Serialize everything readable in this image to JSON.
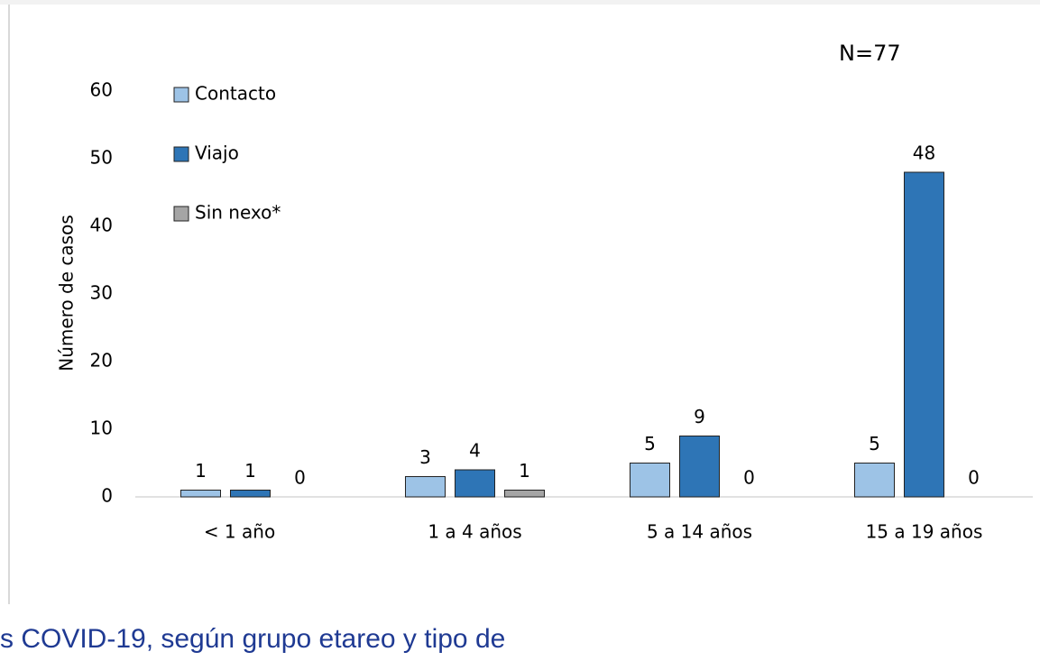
{
  "chart_data": {
    "type": "bar",
    "annotation": "N=77",
    "y_label": "Número de casos",
    "categories": [
      "< 1 año",
      "1 a 4 años",
      "5 a 14 años",
      "15 a 19 años"
    ],
    "series": [
      {
        "name": "Contacto",
        "color": "#9dc3e6",
        "values": [
          1,
          3,
          5,
          5
        ]
      },
      {
        "name": "Viajo",
        "color": "#2e75b6",
        "values": [
          1,
          4,
          9,
          48
        ]
      },
      {
        "name": "Sin nexo*",
        "color": "#a5a5a5",
        "values": [
          0,
          1,
          0,
          0
        ]
      }
    ],
    "ylim": [
      0,
      60
    ],
    "yticks": [
      0,
      10,
      20,
      30,
      40,
      50,
      60
    ],
    "grid": false,
    "legend": "top-left"
  },
  "caption": "s COVID-19, según grupo etareo y tipo de"
}
